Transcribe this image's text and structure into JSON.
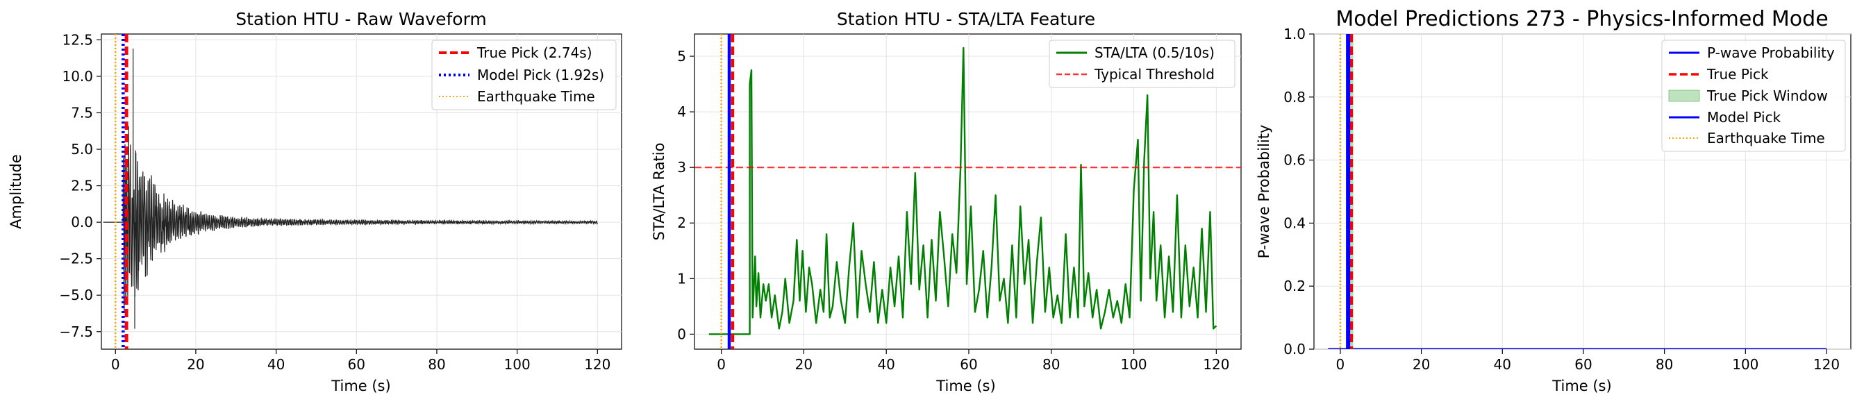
{
  "chart_data": [
    {
      "type": "line",
      "title": "Station HTU - Raw Waveform",
      "xlabel": "Time (s)",
      "ylabel": "Amplitude",
      "xlim": [
        -3.5,
        126
      ],
      "ylim": [
        -8.7,
        12.9
      ],
      "xticks": [
        0,
        20,
        40,
        60,
        80,
        100,
        120
      ],
      "yticks": [
        -7.5,
        -5.0,
        -2.5,
        0.0,
        2.5,
        5.0,
        7.5,
        10.0,
        12.5
      ],
      "ytick_labels": [
        "−7.5",
        "−5.0",
        "−2.5",
        "0.0",
        "2.5",
        "5.0",
        "7.5",
        "10.0",
        "12.5"
      ],
      "grid": true,
      "legend_position": "top-right",
      "series": [
        {
          "kind": "waveform",
          "color": "#222222",
          "x_range": [
            -3,
            120
          ],
          "onset": 1.9,
          "peak": 11.9,
          "trough": -7.3
        },
        {
          "kind": "vline",
          "name": "True Pick (2.74s)",
          "x": 2.74,
          "color": "#ff0000",
          "style": "dashed"
        },
        {
          "kind": "vline",
          "name": "Model Pick (1.92s)",
          "x": 1.92,
          "color": "#0000ff",
          "style": "dotted"
        },
        {
          "kind": "vline",
          "name": "Earthquake Time",
          "x": 0,
          "color": "#ffa500",
          "style": "dotted"
        }
      ]
    },
    {
      "type": "line",
      "title": "Station HTU - STA/LTA Feature",
      "xlabel": "Time (s)",
      "ylabel": "STA/LTA Ratio",
      "xlim": [
        -6.5,
        126
      ],
      "ylim": [
        -0.27,
        5.4
      ],
      "xticks": [
        0,
        20,
        40,
        60,
        80,
        100,
        120
      ],
      "yticks": [
        0,
        1,
        2,
        3,
        4,
        5
      ],
      "grid": true,
      "legend_position": "top-right",
      "series": [
        {
          "kind": "line",
          "name": "STA/LTA (0.5/10s)",
          "color": "#008000",
          "x": [
            -3,
            6.9,
            6.9,
            7.3,
            7.6,
            8.2,
            8.5,
            9,
            9.5,
            10.2,
            10.8,
            11.5,
            12.2,
            13,
            14,
            14.8,
            15.5,
            16.5,
            17.5,
            18.3,
            19,
            19.7,
            20.5,
            21.3,
            22,
            23,
            24,
            24.8,
            25.5,
            26.3,
            27,
            28,
            29,
            30,
            31,
            32,
            33,
            34,
            35,
            36,
            37,
            38,
            39,
            40,
            41,
            42,
            43,
            44,
            45,
            46,
            47,
            48,
            49,
            50,
            51,
            52,
            53,
            54,
            55,
            56,
            57,
            58,
            58.7,
            59.5,
            60.5,
            61.5,
            62.5,
            63.5,
            64.5,
            65.5,
            66.5,
            67.5,
            68.5,
            69.5,
            70.5,
            71.5,
            72.5,
            73.5,
            74.5,
            75.5,
            76.5,
            77.5,
            78.5,
            79.5,
            80.5,
            81.5,
            82.5,
            83.5,
            84.5,
            85.5,
            86.5,
            87.2,
            88,
            89,
            90,
            91,
            92,
            93,
            94,
            95,
            96,
            97,
            98,
            99,
            100,
            101,
            101.7,
            102.5,
            103.3,
            104,
            104.8,
            105.5,
            106.5,
            107.5,
            108.5,
            109.5,
            110.5,
            111.5,
            112.5,
            113.5,
            114.5,
            115.5,
            116.5,
            117.5,
            118.5,
            119.3,
            120
          ],
          "y": [
            0,
            0,
            4.5,
            4.75,
            0.3,
            1.4,
            0.5,
            1.1,
            0.3,
            0.9,
            0.6,
            0.9,
            0.3,
            0.7,
            0.1,
            0.4,
            1.0,
            0.2,
            0.6,
            1.7,
            0.6,
            1.5,
            0.4,
            1.2,
            0.9,
            0.2,
            0.8,
            0.4,
            1.8,
            0.3,
            0.5,
            1.3,
            0.6,
            0.2,
            1.2,
            2.0,
            0.3,
            1.5,
            0.9,
            0.4,
            1.3,
            0.2,
            0.8,
            0.2,
            1.2,
            0.5,
            1.4,
            0.3,
            2.2,
            0.9,
            2.9,
            0.8,
            1.6,
            0.3,
            1.7,
            0.6,
            2.2,
            1.4,
            0.5,
            1.8,
            1.1,
            3.0,
            5.15,
            0.9,
            2.3,
            0.4,
            0.8,
            1.5,
            0.3,
            1.2,
            2.5,
            0.6,
            1.0,
            0.2,
            1.6,
            0.3,
            2.3,
            0.9,
            1.7,
            0.2,
            1.3,
            2.1,
            0.4,
            1.2,
            0.3,
            0.7,
            0.2,
            1.8,
            0.3,
            1.2,
            0.3,
            3.05,
            0.5,
            1.1,
            0.3,
            0.8,
            0.1,
            0.4,
            0.8,
            0.3,
            0.6,
            0.2,
            0.9,
            0.3,
            2.6,
            3.5,
            0.6,
            3.1,
            4.3,
            1.0,
            2.2,
            0.6,
            1.6,
            0.3,
            1.4,
            0.4,
            2.5,
            0.3,
            1.6,
            0.5,
            1.2,
            0.3,
            1.9,
            0.4,
            2.2,
            0.1,
            0.15
          ]
        },
        {
          "kind": "hline",
          "name": "Typical Threshold",
          "y": 3.0,
          "color": "#ff0000",
          "style": "dashed"
        },
        {
          "kind": "vline",
          "x": 2.74,
          "color": "#ff0000",
          "style": "dashed"
        },
        {
          "kind": "vline",
          "x": 1.92,
          "color": "#0000ff",
          "style": "solid"
        },
        {
          "kind": "vline",
          "x": 0,
          "color": "#ffa500",
          "style": "dotted"
        }
      ]
    },
    {
      "type": "line",
      "title": "Model Predictions 273 - Physics-Informed Mode",
      "xlabel": "Time (s)",
      "ylabel": "P-wave Probability",
      "xlim": [
        -6.5,
        126
      ],
      "ylim": [
        0,
        1
      ],
      "xticks": [
        0,
        20,
        40,
        60,
        80,
        100,
        120
      ],
      "yticks": [
        0,
        0.2,
        0.4,
        0.6,
        0.8,
        1.0
      ],
      "ytick_labels": [
        "0.0",
        "0.2",
        "0.4",
        "0.6",
        "0.8",
        "1.0"
      ],
      "grid": true,
      "legend_position": "top-right",
      "series": [
        {
          "kind": "line",
          "name": "P-wave Probability",
          "color": "#0000ff",
          "x": [
            -3,
            120
          ],
          "y": [
            0,
            0
          ]
        },
        {
          "kind": "vline",
          "name": "True Pick",
          "x": 2.74,
          "color": "#ff0000",
          "style": "dashed"
        },
        {
          "kind": "band",
          "name": "True Pick Window",
          "x0": 2.3,
          "x1": 3.2,
          "color": "#2ca02c"
        },
        {
          "kind": "vline",
          "name": "Model Pick",
          "x": 1.92,
          "color": "#0000ff",
          "style": "solid"
        },
        {
          "kind": "vline",
          "name": "Earthquake Time",
          "x": 0,
          "color": "#ffa500",
          "style": "dotted"
        }
      ]
    }
  ]
}
